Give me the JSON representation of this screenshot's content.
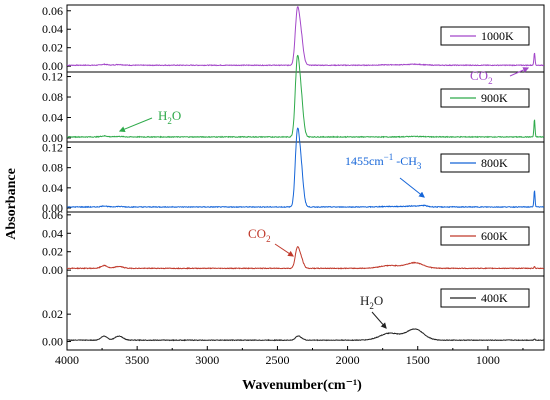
{
  "chart_data": {
    "type": "line",
    "xlabel": "Wavenumber(cm⁻¹)",
    "ylabel": "Absorbance",
    "xlim": [
      4000,
      600
    ],
    "x_ticks": [
      "4000",
      "3500",
      "3000",
      "2500",
      "2000",
      "1500",
      "1000"
    ],
    "grid": false,
    "legend_placement": "right of each panel",
    "panels": [
      {
        "series_name": "1000K",
        "color": "#a347c9",
        "ylim": [
          -0.002,
          0.063
        ],
        "y_ticks": [
          "0.00",
          "0.02",
          "0.04",
          "0.06"
        ],
        "baseline": 0.001,
        "peaks": [
          {
            "x": 3735,
            "y": 0.002
          },
          {
            "x": 3630,
            "y": 0.0018
          },
          {
            "x": 2361,
            "y": 0.046
          },
          {
            "x": 2337,
            "y": 0.038
          },
          {
            "x": 1700,
            "y": 0.0015
          },
          {
            "x": 1520,
            "y": 0.002
          },
          {
            "x": 668,
            "y": 0.015
          }
        ]
      },
      {
        "series_name": "900K",
        "color": "#2eaa4a",
        "ylim": [
          -0.004,
          0.125
        ],
        "y_ticks": [
          "0.00",
          "0.04",
          "0.08",
          "0.12"
        ],
        "baseline": 0.002,
        "peaks": [
          {
            "x": 3735,
            "y": 0.004
          },
          {
            "x": 3630,
            "y": 0.003
          },
          {
            "x": 2361,
            "y": 0.116
          },
          {
            "x": 2337,
            "y": 0.094
          },
          {
            "x": 1700,
            "y": 0.002
          },
          {
            "x": 1520,
            "y": 0.003
          },
          {
            "x": 668,
            "y": 0.036
          }
        ]
      },
      {
        "series_name": "800K",
        "color": "#1565d8",
        "ylim": [
          -0.004,
          0.125
        ],
        "y_ticks": [
          "0.00",
          "0.04",
          "0.08",
          "0.12"
        ],
        "baseline": 0.002,
        "peaks": [
          {
            "x": 3735,
            "y": 0.004
          },
          {
            "x": 3630,
            "y": 0.003
          },
          {
            "x": 2361,
            "y": 0.113
          },
          {
            "x": 2337,
            "y": 0.094
          },
          {
            "x": 1700,
            "y": 0.003
          },
          {
            "x": 1520,
            "y": 0.004
          },
          {
            "x": 1455,
            "y": 0.004
          },
          {
            "x": 668,
            "y": 0.036
          }
        ]
      },
      {
        "series_name": "600K",
        "color": "#c0392b",
        "ylim": [
          -0.002,
          0.062
        ],
        "y_ticks": [
          "0.00",
          "0.02",
          "0.04",
          "0.06"
        ],
        "baseline": 0.002,
        "peaks": [
          {
            "x": 3735,
            "y": 0.005
          },
          {
            "x": 3630,
            "y": 0.004
          },
          {
            "x": 2361,
            "y": 0.019
          },
          {
            "x": 2337,
            "y": 0.015
          },
          {
            "x": 1700,
            "y": 0.005
          },
          {
            "x": 1520,
            "y": 0.008
          },
          {
            "x": 668,
            "y": 0.004
          }
        ]
      },
      {
        "series_name": "400K",
        "color": "#222222",
        "ylim": [
          -0.004,
          0.034
        ],
        "y_ticks": [
          "0.00",
          "0.02"
        ],
        "baseline": 0.001,
        "peaks": [
          {
            "x": 3735,
            "y": 0.004
          },
          {
            "x": 3630,
            "y": 0.004
          },
          {
            "x": 2361,
            "y": 0.003
          },
          {
            "x": 2337,
            "y": 0.003
          },
          {
            "x": 1700,
            "y": 0.006
          },
          {
            "x": 1520,
            "y": 0.009
          },
          {
            "x": 668,
            "y": 0.002
          }
        ]
      }
    ],
    "annotations": [
      {
        "panel": 0,
        "base": "CO",
        "sub": "2",
        "color": "#a347c9"
      },
      {
        "panel": 1,
        "base": "H",
        "sub": "2",
        "tail": "O",
        "color": "#2eaa4a"
      },
      {
        "panel": 2,
        "base": "1455cm",
        "sup": "−1",
        "mid": " -CH",
        "sub": "3",
        "color": "#1565d8"
      },
      {
        "panel": 3,
        "base": "CO",
        "sub": "2",
        "color": "#c0392b"
      },
      {
        "panel": 4,
        "base": "H",
        "sub": "2",
        "tail": "O",
        "color": "#222222"
      }
    ]
  }
}
